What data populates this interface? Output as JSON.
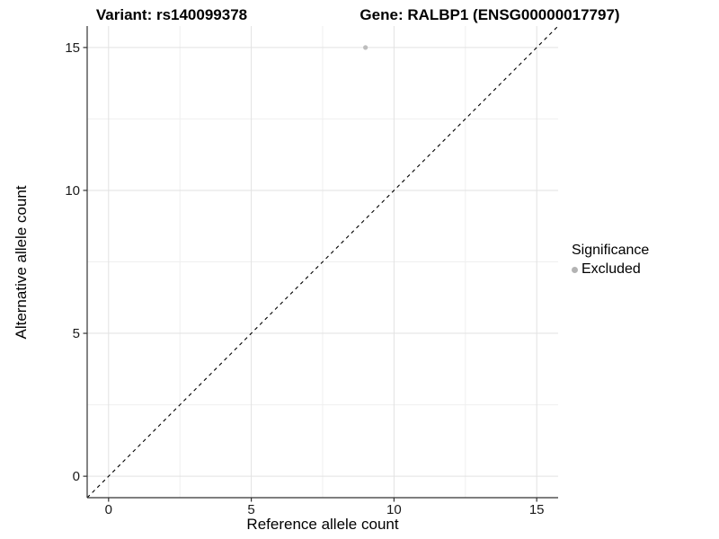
{
  "chart_data": {
    "type": "scatter",
    "title_left": "Variant: rs140099378",
    "title_right": "Gene: RALBP1 (ENSG00000017797)",
    "xlabel": "Reference allele count",
    "ylabel": "Alternative allele count",
    "xlim": [
      -0.75,
      15.75
    ],
    "ylim": [
      -0.75,
      15.75
    ],
    "x_ticks": [
      0,
      5,
      10,
      15
    ],
    "y_ticks": [
      0,
      5,
      10,
      15
    ],
    "x_minor_ticks": [
      2.5,
      7.5,
      12.5
    ],
    "y_minor_ticks": [
      2.5,
      7.5,
      12.5
    ],
    "grid": true,
    "identity_line": {
      "style": "dashed",
      "x1": -0.75,
      "y1": -0.75,
      "x2": 15.75,
      "y2": 15.75
    },
    "series": [
      {
        "name": "Excluded",
        "color": "#bdbdbd",
        "point_radius": 2.6,
        "points": [
          {
            "x": 9,
            "y": 15
          }
        ]
      }
    ],
    "legend": {
      "title": "Significance",
      "position": "right",
      "items": [
        {
          "label": "Excluded",
          "color": "#b3b3b3"
        }
      ]
    }
  },
  "colors": {
    "background": "#ffffff",
    "grid_major": "#e2e2e2",
    "grid_minor": "#efefef",
    "axis_line": "#333333",
    "tick_mark": "#333333",
    "tick_label": "#1a1a1a",
    "title_text": "#000000",
    "identity_line": "#000000"
  }
}
